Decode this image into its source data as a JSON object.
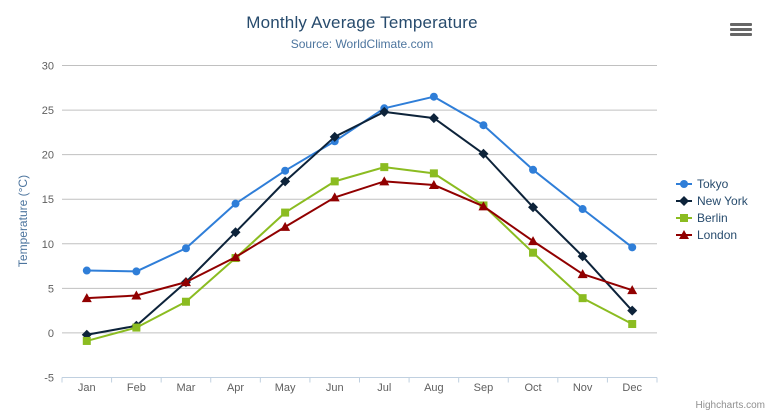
{
  "chart_data": {
    "type": "line",
    "title": "Monthly Average Temperature",
    "subtitle": "Source: WorldClimate.com",
    "xlabel": "",
    "ylabel": "Temperature (°C)",
    "ylim": [
      -5,
      30
    ],
    "yticks": [
      -5,
      0,
      5,
      10,
      15,
      20,
      25,
      30
    ],
    "grid": true,
    "legend_position": "right",
    "categories": [
      "Jan",
      "Feb",
      "Mar",
      "Apr",
      "May",
      "Jun",
      "Jul",
      "Aug",
      "Sep",
      "Oct",
      "Nov",
      "Dec"
    ],
    "series": [
      {
        "name": "Tokyo",
        "color": "#2f7ed8",
        "marker": "circle",
        "values": [
          7.0,
          6.9,
          9.5,
          14.5,
          18.2,
          21.5,
          25.2,
          26.5,
          23.3,
          18.3,
          13.9,
          9.6
        ]
      },
      {
        "name": "New York",
        "color": "#0d233a",
        "marker": "diamond",
        "values": [
          -0.2,
          0.8,
          5.7,
          11.3,
          17.0,
          22.0,
          24.8,
          24.1,
          20.1,
          14.1,
          8.6,
          2.5
        ]
      },
      {
        "name": "Berlin",
        "color": "#8bbc21",
        "marker": "square",
        "values": [
          -0.9,
          0.6,
          3.5,
          8.4,
          13.5,
          17.0,
          18.6,
          17.9,
          14.3,
          9.0,
          3.9,
          1.0
        ]
      },
      {
        "name": "London",
        "color": "#910000",
        "marker": "triangle-up",
        "values": [
          3.9,
          4.2,
          5.7,
          8.5,
          11.9,
          15.2,
          17.0,
          16.6,
          14.2,
          10.3,
          6.6,
          4.8
        ]
      }
    ]
  },
  "styles": {
    "grid_color": "#c0c0c0",
    "axis_line_color": "#c0d0e0",
    "axis_label_color": "#606060",
    "title_color": "#274b6d",
    "subtitle_color": "#4d759e",
    "legend_text_color": "#274b6d",
    "credits_color": "#909090"
  },
  "export_menu": {
    "icon": "hamburger-menu-icon"
  },
  "credits": {
    "label": "Highcharts.com"
  }
}
